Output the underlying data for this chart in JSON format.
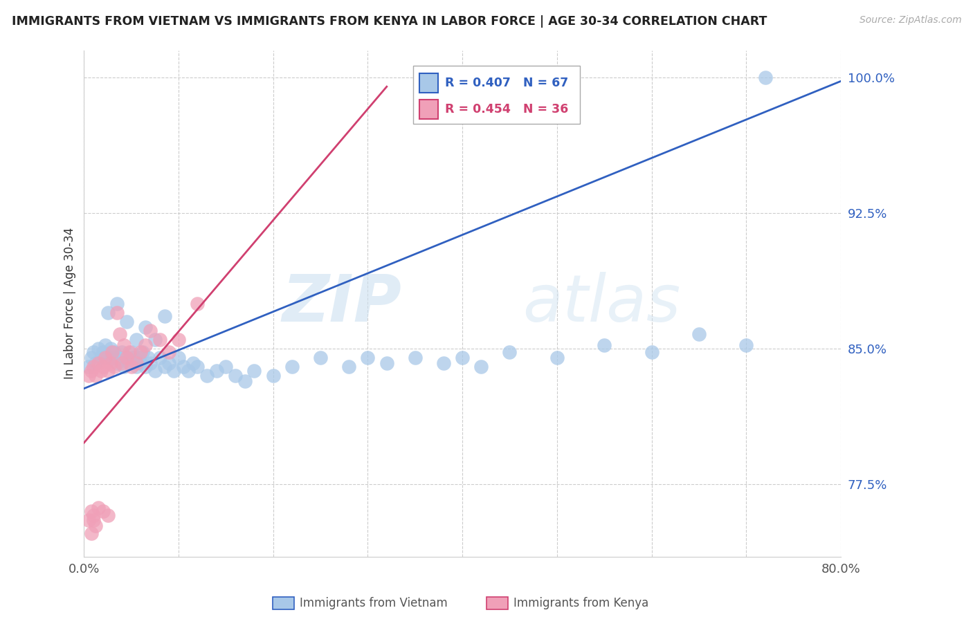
{
  "title": "IMMIGRANTS FROM VIETNAM VS IMMIGRANTS FROM KENYA IN LABOR FORCE | AGE 30-34 CORRELATION CHART",
  "source": "Source: ZipAtlas.com",
  "ylabel": "In Labor Force | Age 30-34",
  "legend_label_blue": "Immigrants from Vietnam",
  "legend_label_pink": "Immigrants from Kenya",
  "R_blue": 0.407,
  "N_blue": 67,
  "R_pink": 0.454,
  "N_pink": 36,
  "color_blue": "#a8c8e8",
  "color_pink": "#f0a0b8",
  "line_blue": "#3060c0",
  "line_pink": "#d04070",
  "xlim": [
    0.0,
    0.8
  ],
  "ylim": [
    0.735,
    1.015
  ],
  "ytick_vals": [
    0.775,
    0.85,
    0.925,
    1.0
  ],
  "ytick_labels": [
    "77.5%",
    "85.0%",
    "92.5%",
    "100.0%"
  ],
  "xtick_vals": [
    0.0,
    0.1,
    0.2,
    0.3,
    0.4,
    0.5,
    0.6,
    0.7,
    0.8
  ],
  "xtick_labels": [
    "0.0%",
    "",
    "",
    "",
    "",
    "",
    "",
    "",
    "80.0%"
  ],
  "watermark_zip": "ZIP",
  "watermark_atlas": "atlas",
  "blue_x": [
    0.005,
    0.008,
    0.01,
    0.012,
    0.015,
    0.018,
    0.02,
    0.022,
    0.025,
    0.028,
    0.03,
    0.032,
    0.035,
    0.038,
    0.04,
    0.042,
    0.045,
    0.048,
    0.05,
    0.052,
    0.055,
    0.058,
    0.06,
    0.062,
    0.065,
    0.068,
    0.07,
    0.075,
    0.08,
    0.085,
    0.09,
    0.095,
    0.1,
    0.105,
    0.11,
    0.115,
    0.12,
    0.13,
    0.14,
    0.15,
    0.16,
    0.17,
    0.18,
    0.2,
    0.22,
    0.25,
    0.28,
    0.3,
    0.32,
    0.35,
    0.38,
    0.4,
    0.42,
    0.45,
    0.5,
    0.55,
    0.6,
    0.65,
    0.7,
    0.025,
    0.035,
    0.045,
    0.055,
    0.065,
    0.075,
    0.085,
    0.72
  ],
  "blue_y": [
    0.84,
    0.845,
    0.848,
    0.842,
    0.85,
    0.845,
    0.848,
    0.852,
    0.845,
    0.85,
    0.845,
    0.848,
    0.842,
    0.845,
    0.848,
    0.84,
    0.845,
    0.842,
    0.848,
    0.845,
    0.84,
    0.845,
    0.842,
    0.848,
    0.84,
    0.845,
    0.842,
    0.838,
    0.845,
    0.84,
    0.842,
    0.838,
    0.845,
    0.84,
    0.838,
    0.842,
    0.84,
    0.835,
    0.838,
    0.84,
    0.835,
    0.832,
    0.838,
    0.835,
    0.84,
    0.845,
    0.84,
    0.845,
    0.842,
    0.845,
    0.842,
    0.845,
    0.84,
    0.848,
    0.845,
    0.852,
    0.848,
    0.858,
    0.852,
    0.87,
    0.875,
    0.865,
    0.855,
    0.862,
    0.855,
    0.868,
    1.0
  ],
  "pink_x": [
    0.005,
    0.008,
    0.01,
    0.012,
    0.015,
    0.018,
    0.02,
    0.022,
    0.025,
    0.028,
    0.03,
    0.032,
    0.035,
    0.038,
    0.04,
    0.042,
    0.045,
    0.048,
    0.05,
    0.055,
    0.06,
    0.065,
    0.07,
    0.08,
    0.09,
    0.1,
    0.12,
    0.008,
    0.01,
    0.015,
    0.005,
    0.008,
    0.01,
    0.012,
    0.02,
    0.025
  ],
  "pink_y": [
    0.835,
    0.838,
    0.84,
    0.835,
    0.842,
    0.838,
    0.84,
    0.845,
    0.838,
    0.842,
    0.848,
    0.84,
    0.87,
    0.858,
    0.842,
    0.852,
    0.845,
    0.848,
    0.84,
    0.842,
    0.848,
    0.852,
    0.86,
    0.855,
    0.848,
    0.855,
    0.875,
    0.76,
    0.755,
    0.762,
    0.755,
    0.748,
    0.758,
    0.752,
    0.76,
    0.758
  ],
  "blue_trendline_x": [
    0.0,
    0.8
  ],
  "blue_trendline_y": [
    0.828,
    0.998
  ],
  "pink_trendline_x": [
    0.0,
    0.32
  ],
  "pink_trendline_y": [
    0.798,
    0.995
  ]
}
